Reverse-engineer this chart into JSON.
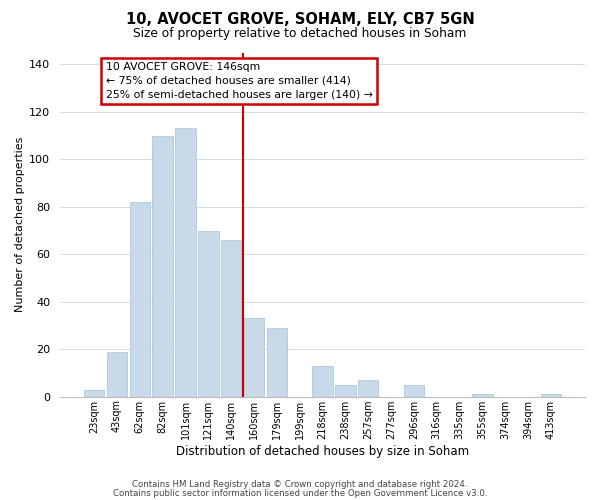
{
  "title": "10, AVOCET GROVE, SOHAM, ELY, CB7 5GN",
  "subtitle": "Size of property relative to detached houses in Soham",
  "xlabel": "Distribution of detached houses by size in Soham",
  "ylabel": "Number of detached properties",
  "bar_color": "#c8daea",
  "bar_edge_color": "#b0c8dc",
  "bin_labels": [
    "23sqm",
    "43sqm",
    "62sqm",
    "82sqm",
    "101sqm",
    "121sqm",
    "140sqm",
    "160sqm",
    "179sqm",
    "199sqm",
    "218sqm",
    "238sqm",
    "257sqm",
    "277sqm",
    "296sqm",
    "316sqm",
    "335sqm",
    "355sqm",
    "374sqm",
    "394sqm",
    "413sqm"
  ],
  "bar_heights": [
    3,
    19,
    82,
    110,
    113,
    70,
    66,
    33,
    29,
    0,
    13,
    5,
    7,
    0,
    5,
    0,
    0,
    1,
    0,
    0,
    1
  ],
  "ylim": [
    0,
    145
  ],
  "yticks": [
    0,
    20,
    40,
    60,
    80,
    100,
    120,
    140
  ],
  "vline_color": "#cc0000",
  "annotation_title": "10 AVOCET GROVE: 146sqm",
  "annotation_line1": "← 75% of detached houses are smaller (414)",
  "annotation_line2": "25% of semi-detached houses are larger (140) →",
  "footer1": "Contains HM Land Registry data © Crown copyright and database right 2024.",
  "footer2": "Contains public sector information licensed under the Open Government Licence v3.0.",
  "background_color": "#ffffff",
  "grid_color": "#d0dce8"
}
